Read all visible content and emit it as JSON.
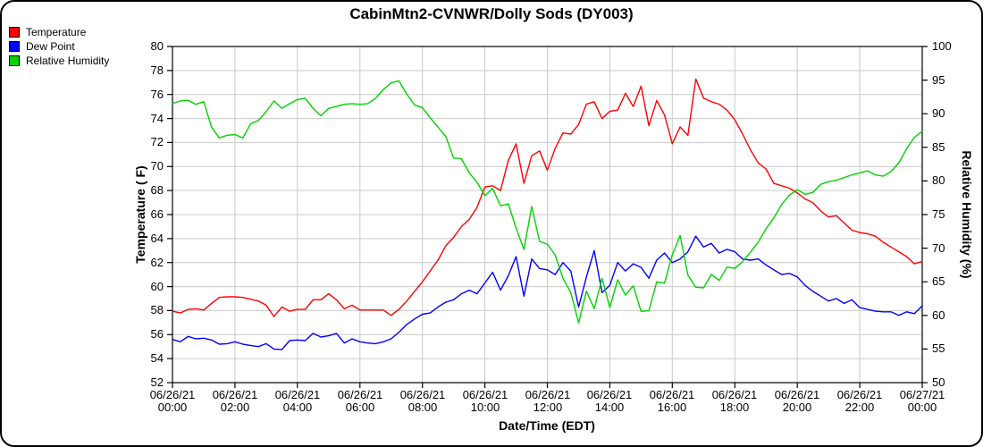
{
  "title": "CabinMtn2-CVNWR/Dolly Sods (DY003)",
  "legend": [
    {
      "label": "Temperature",
      "color": "#ff0000"
    },
    {
      "label": "Dew Point",
      "color": "#0000ff"
    },
    {
      "label": "Relative Humidity",
      "color": "#00d400"
    }
  ],
  "axes": {
    "left": {
      "title": "Temperature ( F)",
      "ticks": [
        80,
        78,
        76,
        74,
        72,
        70,
        68,
        66,
        64,
        62,
        60,
        58,
        56,
        54,
        52
      ]
    },
    "right": {
      "title": "Relative Humidity (%)",
      "ticks": [
        100,
        95,
        90,
        85,
        80,
        75,
        70,
        65,
        60,
        55,
        50
      ]
    },
    "x": {
      "title": "Date/Time (EDT)",
      "ticks": [
        {
          "hour": 0,
          "date": "06/26/21",
          "time": "00:00"
        },
        {
          "hour": 2,
          "date": "06/26/21",
          "time": "02:00"
        },
        {
          "hour": 4,
          "date": "06/26/21",
          "time": "04:00"
        },
        {
          "hour": 6,
          "date": "06/26/21",
          "time": "06:00"
        },
        {
          "hour": 8,
          "date": "06/26/21",
          "time": "08:00"
        },
        {
          "hour": 10,
          "date": "06/26/21",
          "time": "10:00"
        },
        {
          "hour": 12,
          "date": "06/26/21",
          "time": "12:00"
        },
        {
          "hour": 14,
          "date": "06/26/21",
          "time": "14:00"
        },
        {
          "hour": 16,
          "date": "06/26/21",
          "time": "16:00"
        },
        {
          "hour": 18,
          "date": "06/26/21",
          "time": "18:00"
        },
        {
          "hour": 20,
          "date": "06/26/21",
          "time": "20:00"
        },
        {
          "hour": 22,
          "date": "06/26/21",
          "time": "22:00"
        },
        {
          "hour": 24,
          "date": "06/27/21",
          "time": "00:00"
        }
      ]
    }
  },
  "chart_data": {
    "type": "line",
    "title": "CabinMtn2-CVNWR/Dolly Sods (DY003)",
    "xlabel": "Date/Time (EDT)",
    "ylabel_left": "Temperature ( F)",
    "ylabel_right": "Relative Humidity (%)",
    "x_range_hours": [
      0,
      24
    ],
    "left_range": [
      52,
      80
    ],
    "right_range": [
      50,
      100
    ],
    "grid": true,
    "legend_position": "top-left",
    "x_start_hour": 0,
    "x_interval_hours": 0.25,
    "series": [
      {
        "name": "Temperature",
        "color": "#ff0000",
        "axis": "left",
        "values": [
          57.95,
          57.8,
          58.1,
          58.15,
          58.05,
          58.6,
          59.1,
          59.15,
          59.15,
          59.1,
          58.95,
          58.8,
          58.45,
          57.5,
          58.3,
          57.95,
          58.1,
          58.1,
          58.9,
          58.9,
          59.4,
          58.9,
          58.15,
          58.45,
          58.05,
          58.05,
          58.05,
          58.05,
          57.6,
          58.1,
          58.8,
          59.6,
          60.4,
          61.3,
          62.2,
          63.4,
          64.1,
          65.0,
          65.6,
          66.6,
          68.3,
          68.4,
          68.0,
          70.5,
          71.9,
          68.6,
          70.9,
          71.3,
          69.7,
          71.5,
          72.8,
          72.7,
          73.5,
          75.2,
          75.4,
          74.0,
          74.6,
          74.7,
          76.1,
          75.0,
          76.7,
          73.4,
          75.5,
          74.3,
          71.9,
          73.3,
          72.6,
          77.3,
          75.7,
          75.4,
          75.2,
          74.7,
          73.9,
          72.7,
          71.4,
          70.3,
          69.8,
          68.6,
          68.4,
          68.2,
          67.8,
          67.3,
          67.0,
          66.3,
          65.8,
          65.9,
          65.3,
          64.7,
          64.5,
          64.4,
          64.2,
          63.7,
          63.3,
          62.9,
          62.5,
          61.9,
          62.1
        ]
      },
      {
        "name": "Dew Point",
        "color": "#0000ff",
        "axis": "left",
        "values": [
          55.6,
          55.4,
          55.85,
          55.65,
          55.7,
          55.55,
          55.2,
          55.25,
          55.4,
          55.2,
          55.1,
          55.0,
          55.25,
          54.8,
          54.75,
          55.5,
          55.55,
          55.5,
          56.1,
          55.8,
          55.9,
          56.1,
          55.3,
          55.65,
          55.4,
          55.3,
          55.25,
          55.4,
          55.65,
          56.2,
          56.85,
          57.3,
          57.7,
          57.8,
          58.3,
          58.7,
          58.9,
          59.4,
          59.7,
          59.4,
          60.3,
          61.2,
          59.7,
          60.9,
          62.5,
          59.2,
          62.3,
          61.5,
          61.4,
          61.0,
          62.0,
          61.3,
          58.3,
          60.8,
          63.0,
          59.5,
          60.1,
          62.0,
          61.3,
          61.9,
          61.6,
          60.7,
          62.2,
          62.8,
          62.0,
          62.3,
          62.9,
          64.2,
          63.3,
          63.6,
          62.8,
          63.1,
          62.9,
          62.3,
          62.2,
          62.3,
          61.8,
          61.4,
          61.0,
          61.1,
          60.8,
          60.1,
          59.6,
          59.2,
          58.8,
          59.0,
          58.6,
          58.9,
          58.25,
          58.1,
          57.95,
          57.9,
          57.9,
          57.6,
          57.9,
          57.75,
          58.4
        ]
      },
      {
        "name": "Relative Humidity",
        "color": "#00d400",
        "axis": "right",
        "values": [
          91.5,
          91.9,
          92.0,
          91.4,
          91.8,
          88.0,
          86.4,
          86.8,
          86.9,
          86.4,
          88.5,
          89.0,
          90.3,
          91.9,
          90.8,
          91.5,
          92.1,
          92.3,
          90.8,
          89.7,
          90.8,
          91.1,
          91.4,
          91.5,
          91.4,
          91.5,
          92.3,
          93.6,
          94.6,
          94.9,
          92.9,
          91.3,
          90.9,
          89.4,
          88.0,
          86.6,
          83.4,
          83.3,
          81.2,
          79.8,
          77.8,
          78.9,
          76.3,
          76.6,
          73.0,
          69.8,
          76.2,
          71.0,
          70.6,
          69.0,
          65.5,
          63.4,
          58.9,
          63.6,
          61.0,
          65.5,
          61.2,
          65.3,
          63.0,
          64.4,
          60.6,
          60.7,
          65.0,
          64.8,
          69.0,
          71.9,
          66.0,
          64.2,
          64.1,
          66.1,
          65.2,
          67.2,
          67.0,
          68.0,
          69.4,
          70.9,
          72.9,
          74.5,
          76.5,
          77.9,
          78.7,
          78.0,
          78.3,
          79.5,
          79.9,
          80.1,
          80.5,
          80.9,
          81.2,
          81.5,
          80.9,
          80.7,
          81.4,
          82.7,
          84.8,
          86.5,
          87.4
        ]
      }
    ]
  }
}
